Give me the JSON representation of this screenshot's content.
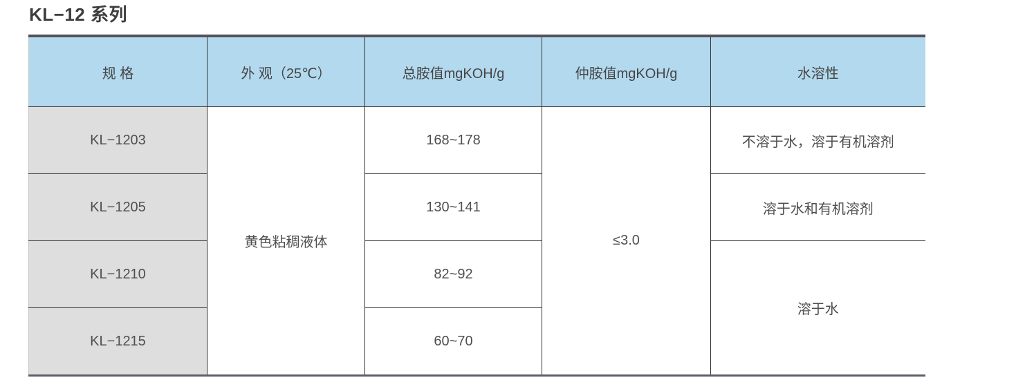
{
  "page": {
    "title": "KL−12 系列"
  },
  "table": {
    "headers": {
      "spec": "规 格",
      "appearance": "外 观（25℃）",
      "total_amine": "总胺值mgKOH/g",
      "secondary_amine": "仲胺值mgKOH/g",
      "solubility": "水溶性"
    },
    "specs": [
      "KL−1203",
      "KL−1205",
      "KL−1210",
      "KL−1215"
    ],
    "appearance_value": "黄色粘稠液体",
    "total_amine_values": [
      "168~178",
      "130~141",
      "82~92",
      "60~70"
    ],
    "secondary_amine_value": "≤3.0",
    "solubility_values": [
      "不溶于水，溶于有机溶剂",
      "溶于水和有机溶剂",
      "溶于水"
    ],
    "colors": {
      "header_bg": "#b3d9ee",
      "spec_column_bg": "#dedede",
      "grid_border": "#343131",
      "outer_border": "#54515a",
      "text": "#4f4f4f"
    }
  }
}
